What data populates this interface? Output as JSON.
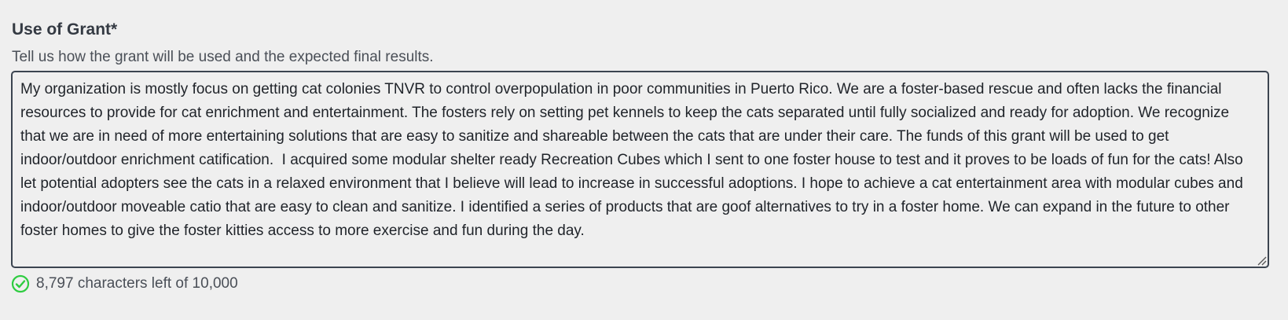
{
  "field": {
    "label": "Use of Grant*",
    "help_text": "Tell us how the grant will be used and the expected final results.",
    "value": "My organization is mostly focus on getting cat colonies TNVR to control overpopulation in poor communities in Puerto Rico. We are a foster-based rescue and often lacks the financial resources to provide for cat enrichment and entertainment. The fosters rely on setting pet kennels to keep the cats separated until fully socialized and ready for adoption. We recognize that we are in need of more entertaining solutions that are easy to sanitize and shareable between the cats that are under their care. The funds of this grant will be used to get indoor/outdoor enrichment catification.  I acquired some modular shelter ready Recreation Cubes which I sent to one foster house to test and it proves to be loads of fun for the cats! Also let potential adopters see the cats in a relaxed environment that I believe will lead to increase in successful adoptions. I hope to achieve a cat entertainment area with modular cubes and indoor/outdoor moveable catio that are easy to clean and sanitize. I identified a series of products that are goof alternatives to try in a foster home. We can expand in the future to other foster homes to give the foster kitties access to more exercise and fun during the day.",
    "counter_text": "8,797 characters left of 10,000",
    "counter_icon": "check-circle-icon"
  },
  "colors": {
    "background": "#efefef",
    "border": "#3b4450",
    "success": "#2ecc40",
    "label": "#343a43",
    "text": "#1f2329"
  }
}
